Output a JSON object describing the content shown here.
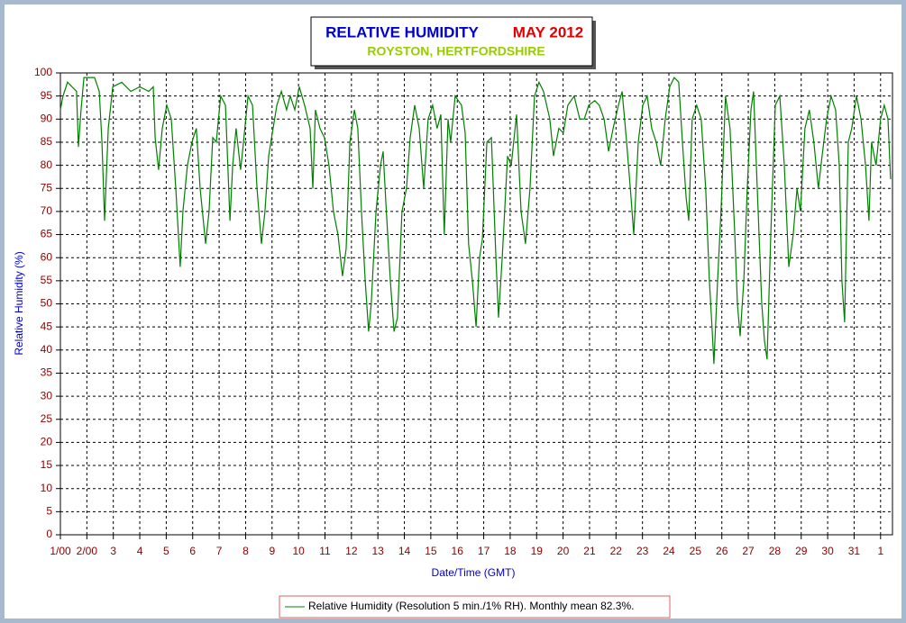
{
  "chart_data": {
    "type": "line",
    "title": "RELATIVE HUMIDITY",
    "title_date": "MAY 2012",
    "subtitle": "ROYSTON, HERTFORDSHIRE",
    "x_label": "Date/Time (GMT)",
    "y_label": "Relative Humidity (%)",
    "xlim": [
      1,
      32.45
    ],
    "ylim": [
      0,
      100
    ],
    "xticks": [
      {
        "value": 1,
        "label": "1/00"
      },
      {
        "value": 2,
        "label": "2/00"
      },
      3,
      4,
      5,
      6,
      7,
      8,
      9,
      10,
      11,
      12,
      13,
      14,
      15,
      16,
      17,
      18,
      19,
      20,
      21,
      22,
      23,
      24,
      25,
      26,
      27,
      28,
      29,
      30,
      31,
      {
        "value": 32,
        "label": "1"
      }
    ],
    "yticks": [
      0,
      5,
      10,
      15,
      20,
      25,
      30,
      35,
      40,
      45,
      50,
      55,
      60,
      65,
      70,
      75,
      80,
      85,
      90,
      95,
      100
    ],
    "grid": true,
    "legend": "bottom",
    "series": [
      {
        "name": "Relative Humidity (Resolution 5 min./1% RH). Monthly mean 82.3%.",
        "color": "#008000",
        "x": [
          1.0,
          1.1,
          1.27,
          1.61,
          1.68,
          1.78,
          1.89,
          2.29,
          2.47,
          2.57,
          2.67,
          2.81,
          2.98,
          3.32,
          3.66,
          4.0,
          4.34,
          4.51,
          4.58,
          4.71,
          4.85,
          5.02,
          5.19,
          5.36,
          5.53,
          5.63,
          5.8,
          5.97,
          6.14,
          6.28,
          6.49,
          6.62,
          6.76,
          6.89,
          7.06,
          7.24,
          7.41,
          7.51,
          7.64,
          7.81,
          7.92,
          8.09,
          8.26,
          8.43,
          8.6,
          8.73,
          8.87,
          9.01,
          9.18,
          9.35,
          9.55,
          9.69,
          9.86,
          10.03,
          10.23,
          10.44,
          10.54,
          10.64,
          10.81,
          10.98,
          11.15,
          11.32,
          11.49,
          11.66,
          11.8,
          11.94,
          12.11,
          12.24,
          12.38,
          12.52,
          12.65,
          12.75,
          12.93,
          13.1,
          13.2,
          13.3,
          13.47,
          13.61,
          13.74,
          13.91,
          14.08,
          14.22,
          14.39,
          14.56,
          14.73,
          14.9,
          15.07,
          15.24,
          15.38,
          15.51,
          15.65,
          15.75,
          15.92,
          16.16,
          16.3,
          16.43,
          16.57,
          16.71,
          16.84,
          16.95,
          17.12,
          17.29,
          17.46,
          17.56,
          17.7,
          17.9,
          18.04,
          18.24,
          18.41,
          18.58,
          18.75,
          18.92,
          19.09,
          19.26,
          19.5,
          19.64,
          19.84,
          20.01,
          20.18,
          20.42,
          20.63,
          20.8,
          20.97,
          21.2,
          21.37,
          21.55,
          21.72,
          21.89,
          22.09,
          22.23,
          22.4,
          22.57,
          22.67,
          22.84,
          23.01,
          23.18,
          23.35,
          23.52,
          23.69,
          23.86,
          24.03,
          24.2,
          24.37,
          24.51,
          24.65,
          24.75,
          24.88,
          25.05,
          25.22,
          25.39,
          25.53,
          25.63,
          25.7,
          25.84,
          25.97,
          26.14,
          26.31,
          26.49,
          26.59,
          26.69,
          26.83,
          26.96,
          27.1,
          27.2,
          27.34,
          27.51,
          27.61,
          27.71,
          27.85,
          28.02,
          28.19,
          28.36,
          28.53,
          28.7,
          28.84,
          28.97,
          29.14,
          29.31,
          29.48,
          29.65,
          29.79,
          29.96,
          30.13,
          30.3,
          30.44,
          30.54,
          30.64,
          30.78,
          30.91,
          31.09,
          31.26,
          31.43,
          31.56,
          31.66,
          31.83,
          32.0,
          32.14,
          32.28,
          32.38
        ],
        "values": [
          92,
          95,
          98,
          96,
          84,
          92,
          99,
          99,
          96,
          85,
          68,
          88,
          97,
          98,
          96,
          97,
          96,
          97,
          86,
          79,
          88,
          93,
          90,
          75,
          58,
          70,
          80,
          85,
          88,
          75,
          63,
          70,
          86,
          85,
          95,
          93,
          68,
          80,
          88,
          79,
          85,
          95,
          93,
          75,
          63,
          70,
          82,
          87,
          93,
          96,
          92,
          95,
          92,
          97,
          93,
          88,
          75,
          92,
          88,
          86,
          80,
          70,
          65,
          56,
          62,
          85,
          92,
          88,
          70,
          55,
          44,
          50,
          70,
          80,
          83,
          72,
          55,
          44,
          47,
          70,
          75,
          86,
          93,
          88,
          75,
          90,
          93,
          88,
          91,
          65,
          90,
          85,
          95,
          93,
          87,
          63,
          55,
          45,
          60,
          64,
          85,
          86,
          60,
          47,
          60,
          82,
          80,
          91,
          70,
          63,
          75,
          95,
          98,
          96,
          90,
          82,
          88,
          87,
          93,
          95,
          90,
          90,
          93,
          94,
          93,
          90,
          83,
          88,
          93,
          96,
          85,
          73,
          65,
          85,
          93,
          95,
          88,
          85,
          80,
          90,
          97,
          99,
          98,
          85,
          73,
          68,
          90,
          93,
          90,
          75,
          55,
          45,
          37,
          55,
          70,
          95,
          88,
          65,
          50,
          43,
          55,
          75,
          92,
          96,
          75,
          50,
          42,
          38,
          65,
          93,
          95,
          80,
          58,
          65,
          75,
          70,
          88,
          92,
          85,
          75,
          82,
          90,
          95,
          92,
          80,
          55,
          46,
          85,
          88,
          95,
          90,
          80,
          68,
          85,
          80,
          90,
          93,
          90,
          77
        ]
      }
    ]
  }
}
